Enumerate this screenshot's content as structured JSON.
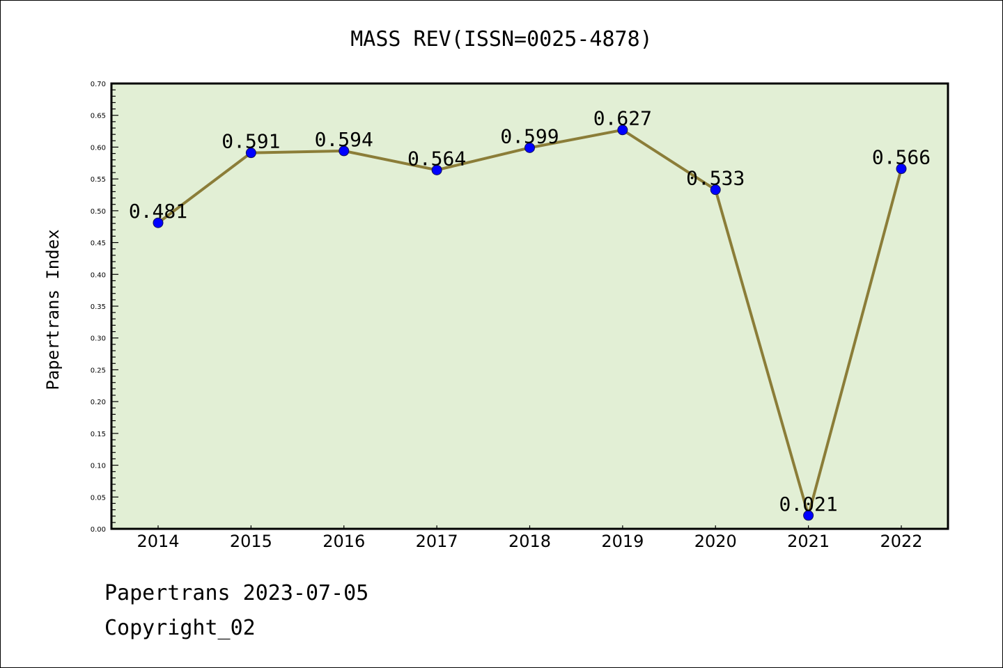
{
  "chart_data": {
    "type": "line",
    "title": "MASS REV(ISSN=0025-4878)",
    "xlabel": "",
    "ylabel": "Papertrans Index",
    "categories": [
      "2014",
      "2015",
      "2016",
      "2017",
      "2018",
      "2019",
      "2020",
      "2021",
      "2022"
    ],
    "values": [
      0.481,
      0.591,
      0.594,
      0.564,
      0.599,
      0.627,
      0.533,
      0.021,
      0.566
    ],
    "data_labels": [
      "0.481",
      "0.591",
      "0.594",
      "0.564",
      "0.599",
      "0.627",
      "0.533",
      "0.021",
      "0.566"
    ],
    "ylim": [
      0,
      0.7
    ],
    "yticks": [
      "0.00",
      "0.05",
      "0.10",
      "0.15",
      "0.20",
      "0.25",
      "0.30",
      "0.35",
      "0.40",
      "0.45",
      "0.50",
      "0.55",
      "0.60",
      "0.65",
      "0.70"
    ],
    "grid": false,
    "colors": {
      "background": "#e2efd5",
      "line": "#8b7d38",
      "marker": "#0000ff"
    }
  },
  "footer": {
    "line1": "Papertrans 2023-07-05",
    "line2": "Copyright_02"
  }
}
